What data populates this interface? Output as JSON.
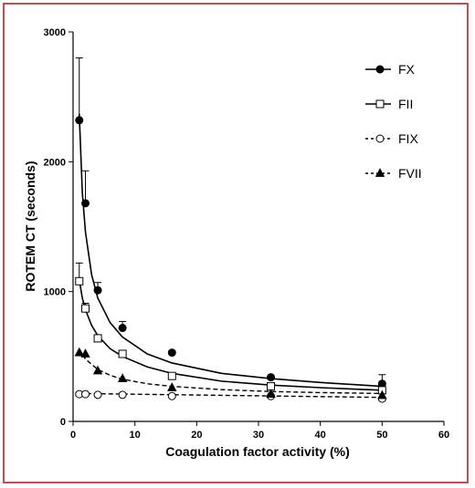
{
  "chart_data": {
    "type": "scatter",
    "title": "",
    "xlabel": "Coagulation factor activity (%)",
    "ylabel": "ROTEM CT (seconds)",
    "xlim": [
      0,
      60
    ],
    "ylim": [
      0,
      3000
    ],
    "x_ticks": [
      "0",
      "10",
      "20",
      "30",
      "40",
      "50",
      "60"
    ],
    "y_ticks": [
      "0",
      "1000",
      "2000",
      "3000"
    ],
    "grid": false,
    "legend_position": "top-right",
    "series": [
      {
        "name": "FX",
        "marker": "filled-circle",
        "line": "solid",
        "x": [
          1,
          2,
          4,
          8,
          16,
          32,
          50
        ],
        "y": [
          2320,
          1680,
          1010,
          720,
          530,
          340,
          290
        ],
        "err": [
          480,
          250,
          60,
          50,
          0,
          0,
          70
        ],
        "fit_x": [
          1,
          1.5,
          2,
          3,
          4,
          6,
          8,
          12,
          16,
          24,
          32,
          40,
          50
        ],
        "fit_y": [
          2370,
          1760,
          1460,
          1130,
          950,
          760,
          650,
          520,
          450,
          370,
          330,
          300,
          270
        ]
      },
      {
        "name": "FII",
        "marker": "open-square",
        "line": "solid",
        "x": [
          1,
          2,
          4,
          8,
          16,
          32,
          50
        ],
        "y": [
          1080,
          870,
          640,
          520,
          350,
          270,
          240
        ],
        "err": [
          140,
          40,
          0,
          0,
          0,
          0,
          0
        ],
        "fit_x": [
          1,
          1.5,
          2,
          3,
          4,
          6,
          8,
          12,
          16,
          24,
          32,
          40,
          50
        ],
        "fit_y": [
          1090,
          950,
          860,
          740,
          660,
          560,
          500,
          420,
          370,
          310,
          280,
          260,
          240
        ]
      },
      {
        "name": "FIX",
        "marker": "open-circle",
        "line": "dashed",
        "x": [
          1,
          2,
          4,
          8,
          16,
          32,
          50
        ],
        "y": [
          210,
          210,
          205,
          205,
          195,
          195,
          175
        ],
        "err": [
          0,
          0,
          0,
          0,
          0,
          0,
          0
        ],
        "fit_x": [
          1,
          50
        ],
        "fit_y": [
          215,
          185
        ]
      },
      {
        "name": "FVII",
        "marker": "filled-triangle",
        "line": "dashed",
        "x": [
          1,
          2,
          4,
          8,
          16,
          32,
          50
        ],
        "y": [
          530,
          520,
          390,
          330,
          260,
          210,
          200
        ],
        "err": [
          0,
          0,
          0,
          0,
          0,
          0,
          0
        ],
        "fit_x": [
          1,
          2,
          4,
          6,
          8,
          12,
          16,
          24,
          32,
          40,
          50
        ],
        "fit_y": [
          560,
          480,
          400,
          355,
          325,
          290,
          270,
          245,
          230,
          222,
          215
        ]
      }
    ]
  }
}
